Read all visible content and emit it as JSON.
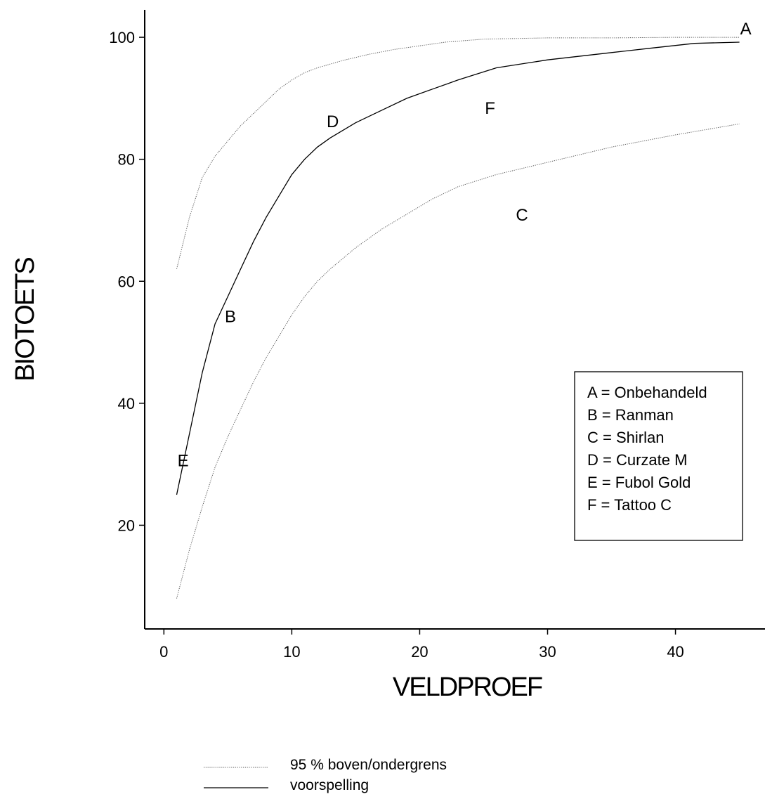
{
  "chart_data": {
    "type": "line",
    "xlabel": "VELDPROEF",
    "ylabel": "BIOTOETS",
    "xlim": [
      -1.5,
      47
    ],
    "ylim": [
      3,
      104.5
    ],
    "xticks": [
      0,
      10,
      20,
      30,
      40
    ],
    "yticks": [
      20,
      40,
      60,
      80,
      100
    ],
    "xtick_labels": [
      "0",
      "10",
      "20",
      "30",
      "40"
    ],
    "ytick_labels": [
      "20",
      "40",
      "60",
      "80",
      "100"
    ],
    "grid": false,
    "series": [
      {
        "name": "voorspelling",
        "style": "solid",
        "x": [
          1,
          2,
          3,
          4,
          5,
          6,
          7,
          8,
          9,
          10,
          11,
          12,
          13,
          15,
          17,
          19,
          21,
          23,
          26,
          30,
          35,
          38,
          41.5,
          45
        ],
        "y": [
          25,
          35,
          45,
          53,
          57.5,
          62,
          66.5,
          70.5,
          74,
          77.5,
          80,
          82,
          83.5,
          86,
          88,
          90,
          91.5,
          93,
          95,
          96.3,
          97.5,
          98.2,
          99,
          99.2
        ]
      },
      {
        "name": "95 % boven/ondergrens",
        "style": "dotted",
        "x": [
          1,
          2,
          3,
          4,
          5,
          6,
          7,
          8,
          9,
          10,
          11,
          12,
          14,
          16,
          18,
          20,
          22,
          25,
          30,
          35,
          40,
          45
        ],
        "y": [
          62,
          70.5,
          77,
          80.5,
          83,
          85.5,
          87.5,
          89.5,
          91.5,
          93,
          94.2,
          95,
          96.2,
          97.2,
          98,
          98.6,
          99.2,
          99.7,
          99.9,
          99.9,
          100,
          100
        ]
      },
      {
        "name": "95 % boven/ondergrens",
        "style": "dotted",
        "x": [
          1,
          2,
          3,
          4,
          5,
          6,
          7,
          8,
          9,
          10,
          11,
          12,
          13,
          15,
          17,
          19,
          21,
          23,
          26,
          30,
          35,
          40,
          45
        ],
        "y": [
          8,
          16,
          23,
          29.5,
          34.5,
          39,
          43.5,
          47.5,
          51,
          54.5,
          57.5,
          60,
          62,
          65.5,
          68.5,
          71,
          73.5,
          75.5,
          77.5,
          79.5,
          82,
          84,
          85.8
        ]
      }
    ],
    "points": [
      {
        "label": "A",
        "x": 45.5,
        "y": 101.5
      },
      {
        "label": "B",
        "x": 5.2,
        "y": 54.3
      },
      {
        "label": "C",
        "x": 28,
        "y": 71
      },
      {
        "label": "D",
        "x": 13.2,
        "y": 86.3
      },
      {
        "label": "E",
        "x": 1.5,
        "y": 30.7
      },
      {
        "label": "F",
        "x": 25.5,
        "y": 88.5
      }
    ],
    "key": [
      "A = Onbehandeld",
      "B = Ranman",
      "C = Shirlan",
      "D = Curzate M",
      "E = Fubol Gold",
      "F = Tattoo C"
    ],
    "legend": [
      {
        "label": "95 % boven/ondergrens",
        "style": "dotted"
      },
      {
        "label": "voorspelling",
        "style": "solid"
      }
    ],
    "legend_position": "bottom"
  }
}
